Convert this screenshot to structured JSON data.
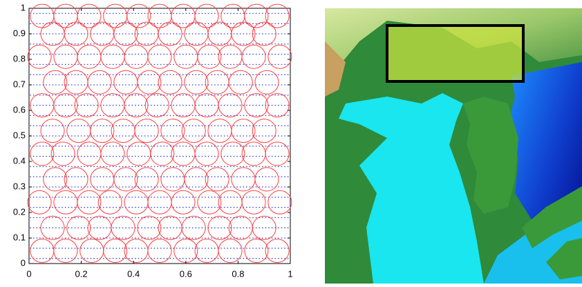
{
  "chart_data": {
    "type": "scatter",
    "xlim": [
      0,
      1
    ],
    "ylim": [
      0,
      1
    ],
    "xticks": [
      0,
      0.2,
      0.4,
      0.6,
      0.8,
      1
    ],
    "yticks": [
      0,
      0.1,
      0.2,
      0.3,
      0.4,
      0.5,
      0.6,
      0.7,
      0.8,
      0.9,
      1
    ],
    "circles": {
      "color": "#ff3b3b",
      "r": 0.045,
      "rows": [
        {
          "y": 0.05,
          "x": [
            0.05,
            0.14,
            0.24,
            0.33,
            0.41,
            0.5,
            0.6,
            0.68,
            0.77,
            0.87,
            0.95
          ]
        },
        {
          "y": 0.14,
          "x": [
            0.09,
            0.19,
            0.27,
            0.36,
            0.46,
            0.54,
            0.63,
            0.73,
            0.81,
            0.9
          ]
        },
        {
          "y": 0.24,
          "x": [
            0.04,
            0.14,
            0.23,
            0.31,
            0.41,
            0.5,
            0.59,
            0.69,
            0.77,
            0.86,
            0.96
          ]
        },
        {
          "y": 0.33,
          "x": [
            0.1,
            0.18,
            0.28,
            0.37,
            0.45,
            0.55,
            0.64,
            0.72,
            0.82,
            0.91
          ]
        },
        {
          "y": 0.43,
          "x": [
            0.05,
            0.13,
            0.23,
            0.32,
            0.42,
            0.51,
            0.59,
            0.68,
            0.78,
            0.86,
            0.95
          ]
        },
        {
          "y": 0.52,
          "x": [
            0.09,
            0.19,
            0.28,
            0.36,
            0.45,
            0.55,
            0.63,
            0.73,
            0.82,
            0.9
          ]
        },
        {
          "y": 0.62,
          "x": [
            0.05,
            0.14,
            0.22,
            0.32,
            0.41,
            0.49,
            0.59,
            0.68,
            0.77,
            0.87,
            0.95
          ]
        },
        {
          "y": 0.71,
          "x": [
            0.1,
            0.18,
            0.27,
            0.37,
            0.46,
            0.54,
            0.64,
            0.72,
            0.81,
            0.91
          ]
        },
        {
          "y": 0.81,
          "x": [
            0.04,
            0.14,
            0.23,
            0.32,
            0.41,
            0.5,
            0.6,
            0.69,
            0.77,
            0.86,
            0.96
          ]
        },
        {
          "y": 0.9,
          "x": [
            0.09,
            0.18,
            0.28,
            0.37,
            0.45,
            0.54,
            0.64,
            0.73,
            0.82,
            0.9
          ]
        },
        {
          "y": 0.97,
          "x": [
            0.05,
            0.14,
            0.23,
            0.33,
            0.42,
            0.5,
            0.59,
            0.68,
            0.78,
            0.87,
            0.95
          ]
        }
      ]
    },
    "dots": {
      "color": "#3344ee",
      "rows": [
        0.02,
        0.06,
        0.1,
        0.14,
        0.18,
        0.22,
        0.26,
        0.3,
        0.34,
        0.38,
        0.42,
        0.46,
        0.5,
        0.54,
        0.58,
        0.62,
        0.66,
        0.7,
        0.74,
        0.78,
        0.82,
        0.86,
        0.9,
        0.94,
        0.98
      ]
    }
  }
}
